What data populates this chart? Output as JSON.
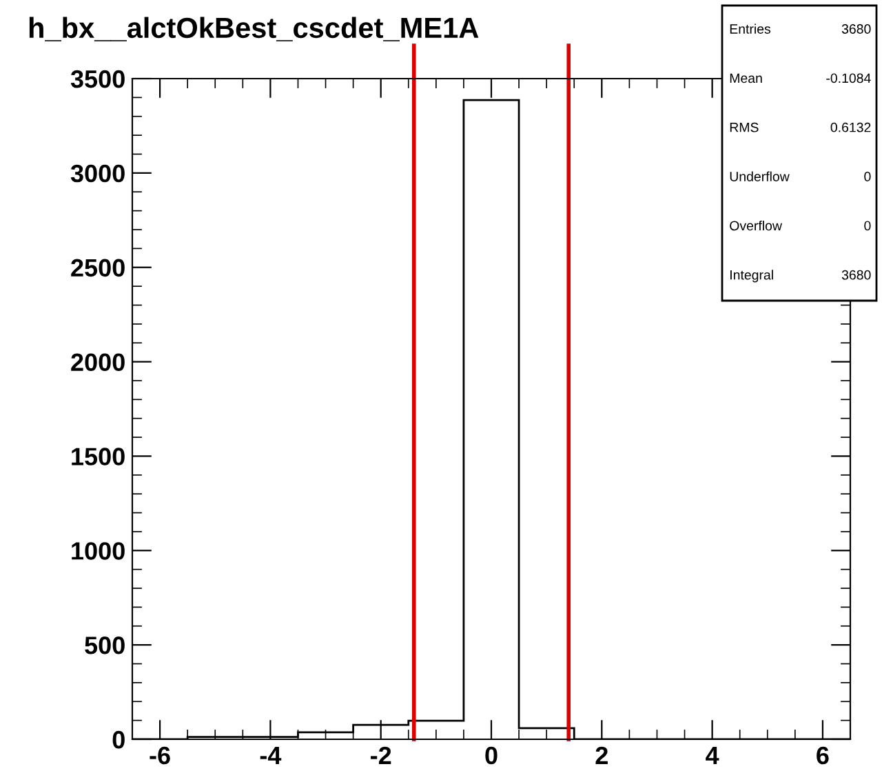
{
  "chart_data": {
    "type": "histogram",
    "title": "h_bx__alctOkBest_cscdet_ME1A",
    "bins": [
      -6.5,
      -5.5,
      -4.5,
      -3.5,
      -2.5,
      -1.5,
      -0.5,
      0.5,
      1.5,
      2.5,
      3.5,
      4.5,
      5.5,
      6.5
    ],
    "values": [
      0,
      12,
      12,
      37,
      76,
      98,
      3386,
      59,
      0,
      0,
      0,
      0,
      0
    ],
    "color": "#000000",
    "xlim": [
      -6.5,
      6.5
    ],
    "xticks": [
      -6,
      -4,
      -2,
      0,
      2,
      4,
      6
    ],
    "ylim": [
      0,
      3500
    ],
    "yticks": [
      0,
      500,
      1000,
      1500,
      2000,
      2500,
      3000,
      3500
    ],
    "ref_lines": [
      {
        "axis": "x",
        "value": -1.4,
        "color": "#dd0000"
      },
      {
        "axis": "x",
        "value": 1.4,
        "color": "#dd0000"
      }
    ],
    "annotations": [
      "Entries",
      "3680",
      "Mean",
      "-0.1084",
      "RMS",
      "0.6132",
      "Underflow",
      "0",
      "Overflow",
      "0",
      "Integral",
      "3680"
    ],
    "grid": false
  }
}
